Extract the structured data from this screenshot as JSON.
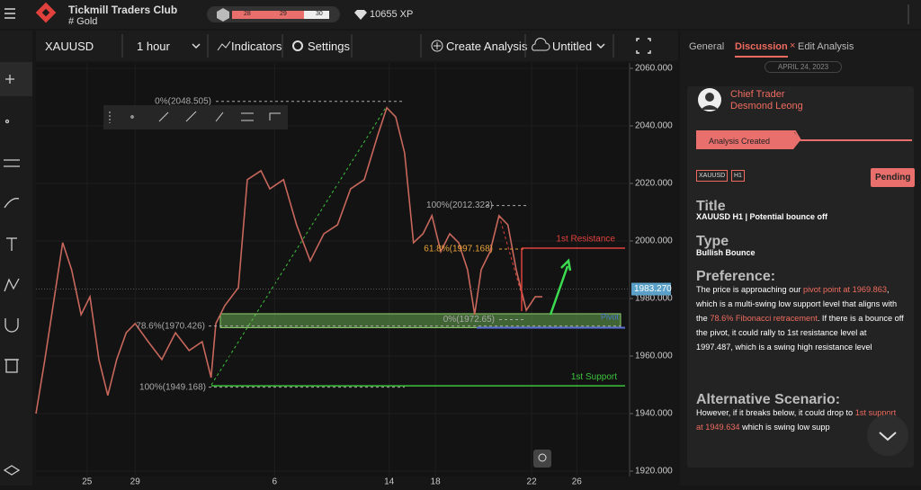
{
  "header": {
    "club": "Tickmill Traders Club",
    "channel": "# Gold",
    "levels": [
      "28",
      "29",
      "30"
    ],
    "xp": "10655 XP"
  },
  "toolbar": {
    "symbol": "XAUUSD",
    "timeframe": "1 hour",
    "indicators": "Indicators",
    "settings": "Settings",
    "create": "Create Analysis",
    "layout": "Untitled"
  },
  "chart_data": {
    "type": "line",
    "color": "#c8675c",
    "x": [
      0,
      1.5,
      4.5,
      6,
      7.6,
      9.1,
      10.6,
      12.1,
      13.6,
      15.2,
      16.7,
      18.9,
      21.2,
      23.5,
      25.8,
      28,
      29.5,
      30.3,
      31.8,
      34.1,
      35.6,
      37.9,
      39.4,
      41.7,
      43.9,
      46.2,
      48.5,
      50.8,
      53,
      55.3,
      57.6,
      59.1,
      60.6,
      62.1,
      63.6,
      65.2,
      66.7,
      68.2,
      69.7,
      71.2,
      72.7,
      73.9,
      75,
      76.5,
      78,
      79.5,
      80.9,
      82.6,
      84.1,
      85.3
    ],
    "values": [
      1940,
      1958.8,
      1999.4,
      1990,
      1974.4,
      1980.6,
      1958.8,
      1946.3,
      1958.8,
      1968.1,
      1971.3,
      1965,
      1958.8,
      1968.1,
      1961.9,
      1965,
      1952.5,
      1971.3,
      1977.5,
      1983.8,
      2021.3,
      2024.4,
      2018.1,
      2021.3,
      2005.6,
      1993.1,
      2002.5,
      2005.6,
      2018.1,
      2021.3,
      2036.9,
      2046.3,
      2043.1,
      2030.6,
      1999.4,
      2002.5,
      2008.8,
      1996.3,
      2002.5,
      1999.4,
      1990,
      1974.4,
      1990,
      1996.3,
      2008.8,
      2005.6,
      1990,
      1975.9,
      1980.6,
      1980.6
    ],
    "xlim": [
      0,
      100
    ],
    "ylim": [
      1920,
      2060
    ],
    "xticks": [
      {
        "value": 8.6,
        "label": "25"
      },
      {
        "value": 16.7,
        "label": "29"
      },
      {
        "value": 40.2,
        "label": "6"
      },
      {
        "value": 59.5,
        "label": "14"
      },
      {
        "value": 67.3,
        "label": "18"
      },
      {
        "value": 83.5,
        "label": "22"
      },
      {
        "value": 91.1,
        "label": "26"
      }
    ],
    "yticks": [
      {
        "value": 2060,
        "label": "2060.000"
      },
      {
        "value": 2040,
        "label": "2040.000"
      },
      {
        "value": 2020,
        "label": "2020.000"
      },
      {
        "value": 2000,
        "label": "2000.000"
      },
      {
        "value": 1980,
        "label": "1980.000"
      },
      {
        "value": 1960,
        "label": "1960.000"
      },
      {
        "value": 1940,
        "label": "1940.000"
      },
      {
        "value": 1920,
        "label": "1920.000"
      }
    ],
    "levels": [
      {
        "label": "0%(2048.505)",
        "value": 2048.505,
        "color": "#aaaaaa"
      },
      {
        "label": "100%(2012.323)",
        "value": 2012.323,
        "color": "#aaaaaa"
      },
      {
        "label": "61.8%(1997.168)",
        "value": 1997.168,
        "color": "#e8a33a"
      },
      {
        "label": "0%(1972.65)",
        "value": 1972.65,
        "color": "#aaaaaa"
      },
      {
        "label": "78.6%(1970.426)",
        "value": 1970.426,
        "color": "#aaaaaa"
      },
      {
        "label": "100%(1949.168)",
        "value": 1949.168,
        "color": "#aaaaaa"
      }
    ],
    "lines": [
      {
        "label": "1st Resistance",
        "value": 1997.487,
        "color": "#e0413c"
      },
      {
        "label": "1st Support",
        "value": 1949.634,
        "color": "#3cc43c"
      }
    ],
    "zone": {
      "label": "Pivot",
      "from": 1969.863,
      "to": 1974.7
    },
    "current": {
      "label": "1983.270",
      "value": 1983.27
    }
  },
  "panel": {
    "tabs": [
      "General",
      "Discussion",
      "Edit Analysis"
    ],
    "date": "APRIL 24, 2023",
    "role": "Chief Trader",
    "author": "Desmond Leong",
    "event": "Analysis Created",
    "tags": [
      "XAUUSD",
      "H1"
    ],
    "status": "Pending",
    "title_label": "Title",
    "title": "XAUUSD H1 | Potential bounce off",
    "type_label": "Type",
    "type": "Bullish Bounce",
    "preference_label": "Preference:",
    "preference": [
      "The price is approaching our ",
      "pivot point at 1969.863",
      ", which is a multi-swing low support level that aligns with the ",
      "78.6% Fibonacci retracement",
      ". If there is a bounce off the pivot, it could rally to 1st resistance level at 1997.487, which is a swing high resistance level"
    ],
    "alternative_label": "Alternative Scenario:",
    "alternative": [
      "However,  if it breaks below, it could drop to ",
      "1st support at 1949.634",
      " which is swing low supp"
    ]
  }
}
